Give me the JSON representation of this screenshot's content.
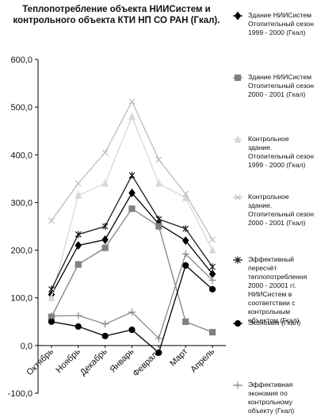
{
  "chart_data": {
    "type": "line",
    "title": "Теплопотребление объекта НИИСистем и контрольного объекта КТИ НП СО РАН (Гкал).",
    "categories": [
      "Октябрь",
      "Ноябрь",
      "Декабрь",
      "Январь",
      "Февраль",
      "Март",
      "Апрель"
    ],
    "ylim": [
      -100,
      600
    ],
    "yticks": [
      {
        "value": -100,
        "label": "-100,0"
      },
      {
        "value": 0,
        "label": "0,0"
      },
      {
        "value": 100,
        "label": "100,0"
      },
      {
        "value": 200,
        "label": "200,0"
      },
      {
        "value": 300,
        "label": "300,0"
      },
      {
        "value": 400,
        "label": "400,0"
      },
      {
        "value": 500,
        "label": "500,0"
      },
      {
        "value": 600,
        "label": "600,0"
      }
    ],
    "legend": "right",
    "series": [
      {
        "name": "Здание НИИСистем Отопительный сезон 1999 - 2000 (Гкал)",
        "color": "#000000",
        "marker": "diamond",
        "values": [
          107,
          210,
          222,
          320,
          255,
          220,
          150
        ]
      },
      {
        "name": "Здание НИИСистем Отопительный сезон 2000 - 2001 (Гкал)",
        "color": "#808080",
        "marker": "square",
        "values": [
          60,
          170,
          205,
          287,
          250,
          50,
          28
        ]
      },
      {
        "name": "Контрольное здание. Отопительный сезон 1999 - 2000 (Гкал)",
        "color": "#d8d8d8",
        "marker": "triangle",
        "values": [
          100,
          315,
          340,
          480,
          340,
          310,
          200
        ]
      },
      {
        "name": "Контрольное здание. Отопительный сезон 2000 - 2001 (Гкал)",
        "color": "#bdbdbd",
        "marker": "x",
        "values": [
          262,
          340,
          405,
          512,
          390,
          318,
          222
        ]
      },
      {
        "name": "Эффективный пересчёт теплопотреблення 2000 - 20001 гг. НИИСистем в соответствии с контрольным объектом (Гкал)",
        "color": "#1a1a1a",
        "marker": "asterisk",
        "values": [
          118,
          233,
          250,
          357,
          265,
          245,
          165
        ]
      },
      {
        "name": "Экономия (Гкал)",
        "color": "#000000",
        "marker": "circle",
        "values": [
          50,
          40,
          20,
          33,
          -15,
          168,
          118
        ]
      },
      {
        "name": "Эффективная экономия по контрольному объекту (Гкал)",
        "color": "#8a8a8a",
        "marker": "plus",
        "values": [
          62,
          63,
          45,
          70,
          15,
          192,
          137
        ]
      }
    ]
  }
}
